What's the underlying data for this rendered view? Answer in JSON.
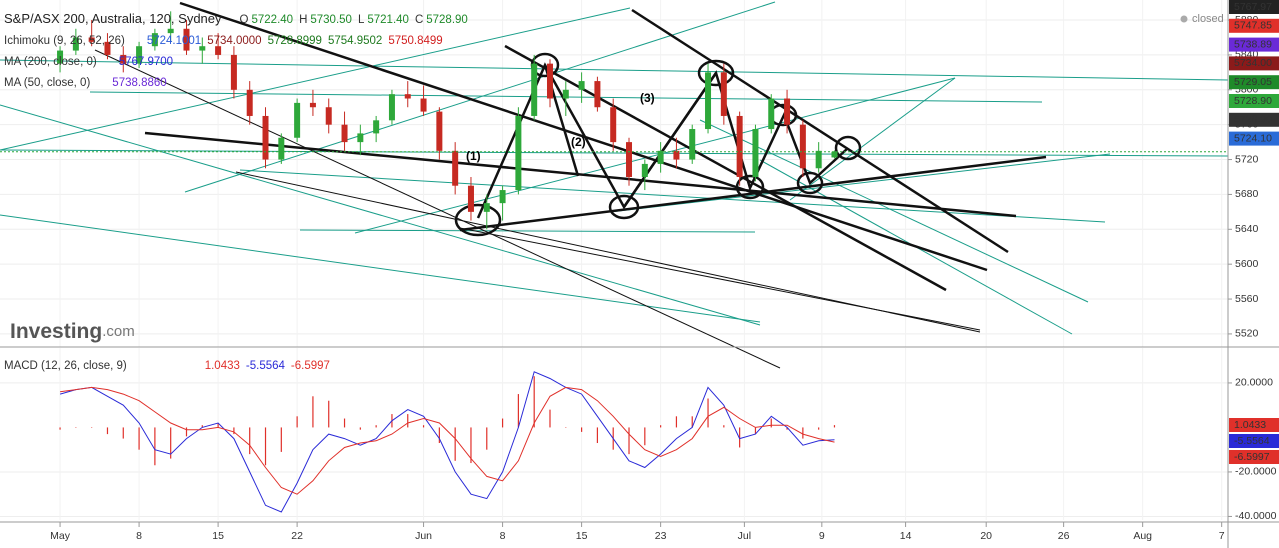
{
  "chart_data": [
    {
      "type": "candlestick",
      "title": "S&P/ASX 200, Australia, 120, Sydney",
      "status": "closed",
      "brand": "Investing",
      "brand_suffix": ".com",
      "wave_labels": [
        "(1)",
        "(2)",
        "(3)"
      ],
      "header": [
        {
          "key": "O",
          "label": "5722.40"
        },
        {
          "key": "H",
          "label": "5730.50"
        },
        {
          "key": "L",
          "label": "5721.40"
        },
        {
          "key": "C",
          "label": "5728.90"
        }
      ],
      "indicators": [
        {
          "name": "Ichimoku (9, 26, 52, 26)",
          "values": [
            "5724.1001",
            "5734.0000",
            "5728.8999",
            "5754.9502",
            "5750.8499"
          ],
          "colors": [
            "#2a5bd7",
            "#8b1a1a",
            "#1f7a1f",
            "#1f7a1f",
            "#d21f1f"
          ]
        },
        {
          "name": "MA (200, close, 0)",
          "values": [
            "5767.9700"
          ],
          "colors": [
            "#2a2ad7"
          ]
        },
        {
          "name": "MA (50, close, 0)",
          "values": [
            "5738.8860"
          ],
          "colors": [
            "#6a2ad7"
          ]
        }
      ],
      "price_labels": [
        {
          "label": "5767.97",
          "color": "#222222"
        },
        {
          "label": "5747.85",
          "color": "#e0302a"
        },
        {
          "label": "5738.89",
          "color": "#6a2ad7"
        },
        {
          "label": "5734.00",
          "color": "#8b1a1a"
        },
        {
          "label": "5729.05",
          "color": "#1f8a2a"
        },
        {
          "label": "5728.90",
          "color": "#2ea83a"
        },
        {
          "label": "5728.90",
          "color": "#333333"
        },
        {
          "label": "5724.10",
          "color": "#2a6bd7"
        }
      ],
      "colors": {
        "up": "#2ea83a",
        "down": "#c62a22",
        "last": "#2ea83a"
      },
      "x": [
        0,
        1,
        2,
        3,
        4,
        5,
        6,
        7,
        8,
        9,
        10,
        11,
        12,
        13,
        14,
        15,
        16,
        17,
        18,
        19,
        20,
        21,
        22,
        23,
        24,
        25,
        26,
        27,
        28,
        29,
        30,
        31,
        32,
        33,
        34,
        35,
        36,
        37,
        38,
        39,
        40,
        41,
        42,
        43,
        44,
        45,
        46,
        47,
        48,
        49
      ],
      "open": [
        5830,
        5845,
        5860,
        5855,
        5840,
        5830,
        5850,
        5865,
        5870,
        5845,
        5850,
        5840,
        5800,
        5770,
        5720,
        5745,
        5785,
        5780,
        5760,
        5740,
        5750,
        5765,
        5795,
        5790,
        5775,
        5730,
        5690,
        5660,
        5670,
        5685,
        5770,
        5830,
        5790,
        5800,
        5810,
        5780,
        5740,
        5700,
        5715,
        5730,
        5720,
        5755,
        5820,
        5770,
        5700,
        5755,
        5790,
        5760,
        5710,
        5722.4
      ],
      "high": [
        5850,
        5870,
        5880,
        5865,
        5850,
        5855,
        5870,
        5890,
        5880,
        5860,
        5865,
        5850,
        5810,
        5780,
        5750,
        5790,
        5800,
        5790,
        5775,
        5760,
        5770,
        5800,
        5810,
        5805,
        5780,
        5740,
        5700,
        5680,
        5690,
        5780,
        5840,
        5835,
        5810,
        5820,
        5815,
        5790,
        5745,
        5720,
        5740,
        5745,
        5760,
        5830,
        5830,
        5775,
        5760,
        5795,
        5800,
        5765,
        5740,
        5730.5
      ],
      "low": [
        5820,
        5840,
        5850,
        5835,
        5820,
        5825,
        5845,
        5855,
        5840,
        5830,
        5835,
        5790,
        5760,
        5710,
        5715,
        5740,
        5770,
        5750,
        5730,
        5725,
        5740,
        5760,
        5780,
        5770,
        5720,
        5680,
        5650,
        5640,
        5650,
        5680,
        5765,
        5780,
        5770,
        5785,
        5775,
        5730,
        5690,
        5685,
        5705,
        5710,
        5715,
        5750,
        5760,
        5690,
        5695,
        5750,
        5750,
        5700,
        5705,
        5721.4
      ],
      "close": [
        5845,
        5860,
        5855,
        5840,
        5830,
        5850,
        5865,
        5870,
        5845,
        5850,
        5840,
        5800,
        5770,
        5720,
        5745,
        5785,
        5780,
        5760,
        5740,
        5750,
        5765,
        5795,
        5790,
        5775,
        5730,
        5690,
        5660,
        5670,
        5685,
        5770,
        5830,
        5790,
        5800,
        5810,
        5780,
        5740,
        5700,
        5715,
        5730,
        5720,
        5755,
        5820,
        5770,
        5700,
        5755,
        5790,
        5760,
        5710,
        5730,
        5728.9
      ],
      "xlim": [
        -3.8,
        73.9
      ],
      "xticks": [
        {
          "value": 0,
          "label": "May"
        },
        {
          "value": 5,
          "label": "8"
        },
        {
          "value": 10,
          "label": "15"
        },
        {
          "value": 15,
          "label": "22"
        },
        {
          "value": 23,
          "label": "Jun"
        },
        {
          "value": 28,
          "label": "8"
        },
        {
          "value": 33,
          "label": "15"
        },
        {
          "value": 38,
          "label": "23"
        },
        {
          "value": 43.3,
          "label": "Jul"
        },
        {
          "value": 48.2,
          "label": "9"
        },
        {
          "value": 53.5,
          "label": "14"
        },
        {
          "value": 58.6,
          "label": "20"
        },
        {
          "value": 63.5,
          "label": "26"
        },
        {
          "value": 68.5,
          "label": "Aug"
        },
        {
          "value": 73.5,
          "label": "7"
        }
      ],
      "ylim": [
        5505,
        5903
      ],
      "yticks": [
        5880,
        5840,
        5800,
        5760,
        5720,
        5680,
        5640,
        5600,
        5560,
        5520
      ],
      "grid": true
    },
    {
      "type": "macd",
      "title": "MACD (12, 26, close, 9)",
      "x": [
        0,
        1,
        2,
        3,
        4,
        5,
        6,
        7,
        8,
        9,
        10,
        11,
        12,
        13,
        14,
        15,
        16,
        17,
        18,
        19,
        20,
        21,
        22,
        23,
        24,
        25,
        26,
        27,
        28,
        29,
        30,
        31,
        32,
        33,
        34,
        35,
        36,
        37,
        38,
        39,
        40,
        41,
        42,
        43,
        44,
        45,
        46,
        47,
        48,
        49
      ],
      "series": [
        {
          "name": "histogram",
          "color": "#e0302a",
          "values": [
            -1,
            0,
            0,
            -3,
            -5,
            -10,
            -17,
            -14,
            -4,
            1,
            2,
            -3,
            -12,
            -17,
            -11,
            5,
            14,
            12,
            4,
            -1,
            1,
            6,
            6,
            1,
            -7,
            -15,
            -16,
            -10,
            4,
            15,
            23,
            8,
            0,
            -2,
            -7,
            -10,
            -12,
            -8,
            1,
            5,
            5,
            13,
            1,
            -9,
            -3,
            4,
            -1,
            -5,
            -1,
            1.0433
          ]
        },
        {
          "name": "macd",
          "color": "#2a2ad7",
          "values": [
            15,
            17,
            18,
            14,
            10,
            2,
            -10,
            -12,
            -5,
            0,
            2,
            -5,
            -20,
            -35,
            -38,
            -25,
            -10,
            -3,
            -5,
            -8,
            -5,
            3,
            8,
            5,
            -5,
            -20,
            -30,
            -32,
            -20,
            0,
            25,
            22,
            18,
            15,
            5,
            -5,
            -15,
            -18,
            -12,
            -5,
            0,
            18,
            10,
            -5,
            -3,
            5,
            0,
            -8,
            -6,
            -5.5564
          ]
        },
        {
          "name": "signal",
          "color": "#e0302a",
          "values": [
            16,
            17,
            18,
            17,
            15,
            12,
            7,
            2,
            -1,
            -1,
            0,
            -2,
            -8,
            -18,
            -27,
            -30,
            -24,
            -15,
            -9,
            -7,
            -6,
            -3,
            2,
            4,
            2,
            -5,
            -14,
            -22,
            -24,
            -15,
            2,
            14,
            18,
            17,
            12,
            5,
            -3,
            -10,
            -13,
            -10,
            -5,
            5,
            9,
            4,
            0,
            1,
            1,
            -3,
            -5,
            -6.5997
          ]
        }
      ],
      "xlim": [
        -3.8,
        73.9
      ],
      "ylim": [
        -41.6,
        35.7
      ],
      "yticks": [
        {
          "value": 20,
          "label": "20.0000"
        },
        {
          "value": -20,
          "label": "-20.0000"
        },
        {
          "value": -40,
          "label": "-40.0000"
        }
      ],
      "grid": true
    }
  ]
}
